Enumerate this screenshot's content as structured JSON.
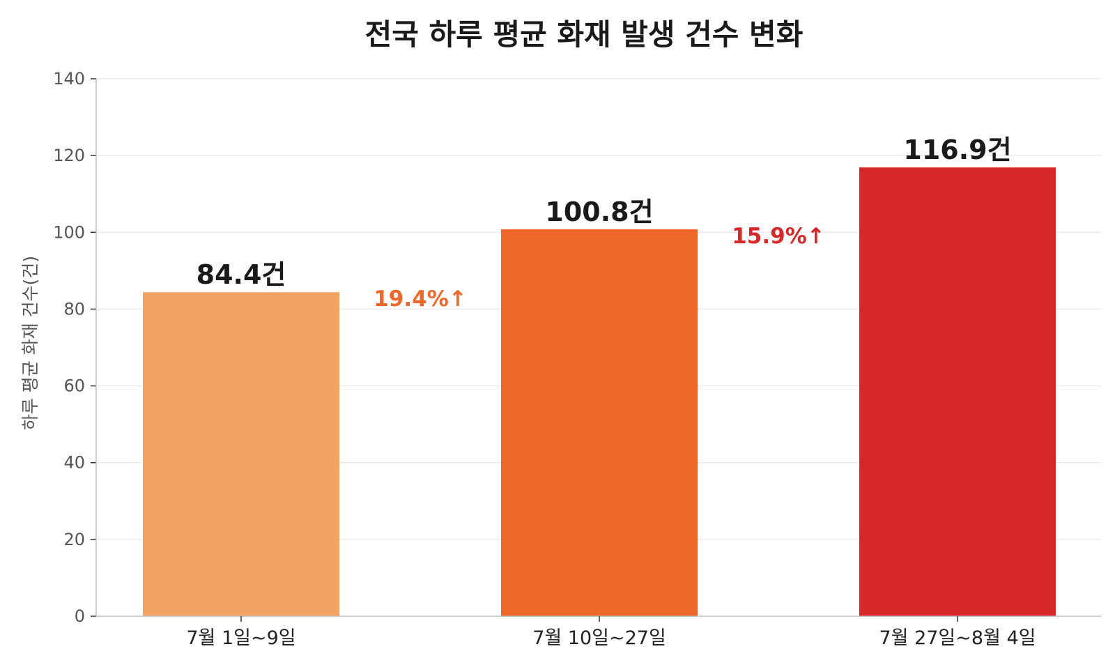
{
  "chart_data": {
    "type": "bar",
    "title": "전국 하루 평균 화재 발생 건수 변화",
    "xlabel": "",
    "ylabel": "하루 평균 화재 건수(건)",
    "ylim": [
      0,
      140
    ],
    "yticks": [
      0,
      20,
      40,
      60,
      80,
      100,
      120,
      140
    ],
    "grid": true,
    "categories": [
      "7월 1일~9일",
      "7월 10일~27일",
      "7월 27일~8월 4일"
    ],
    "values": [
      84.4,
      100.8,
      116.9
    ],
    "value_labels": [
      "84.4건",
      "100.8건",
      "116.9건"
    ],
    "bar_colors": [
      "#F3A463",
      "#EE682B",
      "#D62829"
    ],
    "annotations": [
      {
        "text": "19.4%↑",
        "between": [
          0,
          1
        ],
        "color": "#EE682B"
      },
      {
        "text": "15.9%↑",
        "between": [
          1,
          2
        ],
        "color": "#D62829"
      }
    ]
  }
}
